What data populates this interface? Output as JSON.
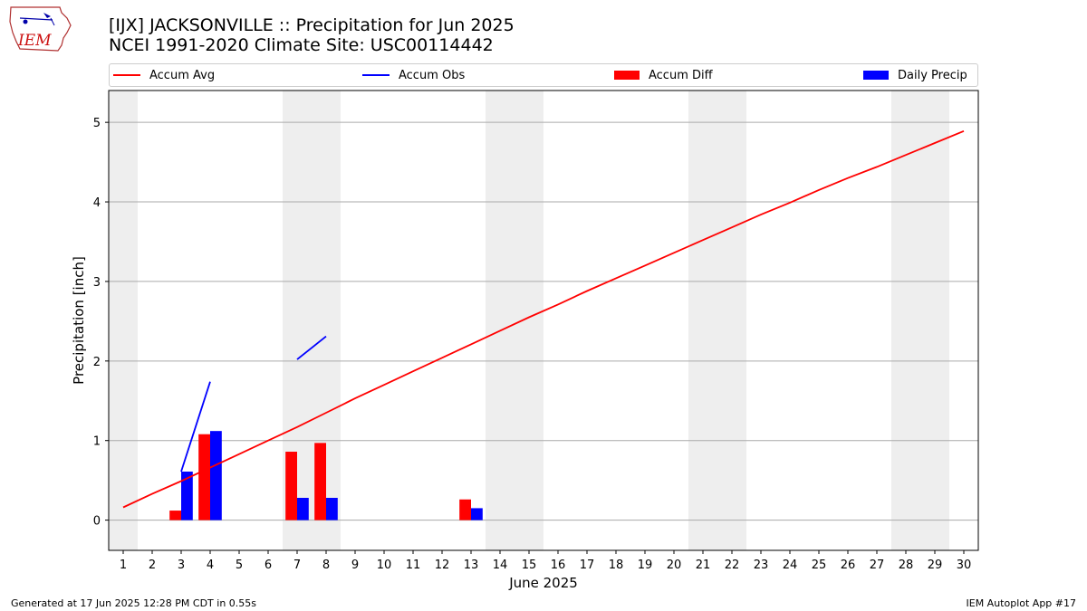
{
  "header": {
    "title_line1": "[IJX] JACKSONVILLE :: Precipitation for Jun 2025",
    "title_line2": "NCEI 1991-2020 Climate Site: USC00114442",
    "logo_text": "IEM"
  },
  "footer": {
    "left": "Generated at 17 Jun 2025 12:28 PM CDT in 0.55s",
    "right": "IEM Autoplot App #17"
  },
  "colors": {
    "accum_avg": "#ff0000",
    "accum_obs": "#0000ff",
    "accum_diff": "#ff0000",
    "daily_precip": "#0000ff",
    "weekend_shade": "#eeeeee",
    "grid": "#aaaaaa"
  },
  "chart_data": {
    "type": "bar",
    "xlabel": "June 2025",
    "ylabel": "Precipitation [inch]",
    "xlim": [
      0.5,
      30.5
    ],
    "ylim": [
      -0.38,
      5.4
    ],
    "xticks": [
      1,
      2,
      3,
      4,
      5,
      6,
      7,
      8,
      9,
      10,
      11,
      12,
      13,
      14,
      15,
      16,
      17,
      18,
      19,
      20,
      21,
      22,
      23,
      24,
      25,
      26,
      27,
      28,
      29,
      30
    ],
    "yticks": [
      0,
      1,
      2,
      3,
      4,
      5
    ],
    "grid": "horizontal",
    "legend_position": "top",
    "weekend_days": [
      1,
      7,
      8,
      14,
      15,
      21,
      22,
      28,
      29
    ],
    "series": [
      {
        "name": "Accum Avg",
        "kind": "line",
        "x": [
          1,
          2,
          3,
          4,
          5,
          6,
          7,
          8,
          9,
          10,
          11,
          12,
          13,
          14,
          15,
          16,
          17,
          18,
          19,
          20,
          21,
          22,
          23,
          24,
          25,
          26,
          27,
          28,
          29,
          30
        ],
        "values": [
          0.16,
          0.33,
          0.49,
          0.66,
          0.83,
          1.0,
          1.17,
          1.35,
          1.53,
          1.7,
          1.87,
          2.04,
          2.21,
          2.38,
          2.55,
          2.71,
          2.88,
          3.04,
          3.2,
          3.36,
          3.52,
          3.68,
          3.84,
          3.99,
          4.15,
          4.3,
          4.44,
          4.59,
          4.74,
          4.89
        ]
      },
      {
        "name": "Accum Obs",
        "kind": "line",
        "segments": [
          {
            "x": [
              3,
              4
            ],
            "values": [
              0.61,
              1.74
            ]
          },
          {
            "x": [
              7,
              8
            ],
            "values": [
              2.02,
              2.31
            ]
          }
        ]
      },
      {
        "name": "Accum Diff",
        "kind": "bar",
        "x": [
          3,
          4,
          7,
          8,
          13
        ],
        "values": [
          0.12,
          1.08,
          0.86,
          0.97,
          0.26
        ]
      },
      {
        "name": "Daily Precip",
        "kind": "bar",
        "x": [
          3,
          4,
          7,
          8,
          13
        ],
        "values": [
          0.61,
          1.12,
          0.28,
          0.28,
          0.15
        ]
      }
    ]
  }
}
